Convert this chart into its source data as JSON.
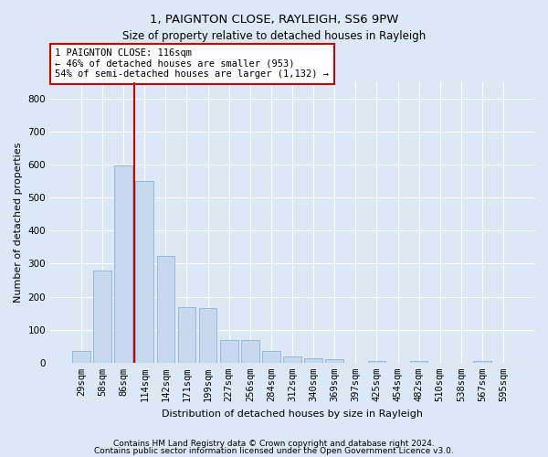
{
  "title1": "1, PAIGNTON CLOSE, RAYLEIGH, SS6 9PW",
  "title2": "Size of property relative to detached houses in Rayleigh",
  "xlabel": "Distribution of detached houses by size in Rayleigh",
  "ylabel": "Number of detached properties",
  "categories": [
    "29sqm",
    "58sqm",
    "86sqm",
    "114sqm",
    "142sqm",
    "171sqm",
    "199sqm",
    "227sqm",
    "256sqm",
    "284sqm",
    "312sqm",
    "340sqm",
    "369sqm",
    "397sqm",
    "425sqm",
    "454sqm",
    "482sqm",
    "510sqm",
    "538sqm",
    "567sqm",
    "595sqm"
  ],
  "values": [
    35,
    278,
    598,
    550,
    322,
    167,
    165,
    68,
    68,
    35,
    18,
    12,
    10,
    0,
    6,
    0,
    5,
    0,
    0,
    6,
    0
  ],
  "bar_color": "#c5d8ed",
  "bar_edge_color": "#8ab4d8",
  "vline_x": 2.5,
  "vline_color": "#cc0000",
  "annotation_text": "1 PAIGNTON CLOSE: 116sqm\n← 46% of detached houses are smaller (953)\n54% of semi-detached houses are larger (1,132) →",
  "annotation_box_color": "#ffffff",
  "annotation_box_edge": "#cc0000",
  "ylim": [
    0,
    850
  ],
  "yticks": [
    0,
    100,
    200,
    300,
    400,
    500,
    600,
    700,
    800
  ],
  "footer1": "Contains HM Land Registry data © Crown copyright and database right 2024.",
  "footer2": "Contains public sector information licensed under the Open Government Licence v3.0.",
  "bg_color": "#dce8f5",
  "plot_bg_color": "#dce8f5",
  "grid_color": "#ffffff",
  "title1_fontsize": 9.5,
  "title2_fontsize": 8.5,
  "ylabel_fontsize": 8,
  "xlabel_fontsize": 8,
  "tick_fontsize": 7.5,
  "annotation_fontsize": 7.5,
  "footer_fontsize": 6.5
}
